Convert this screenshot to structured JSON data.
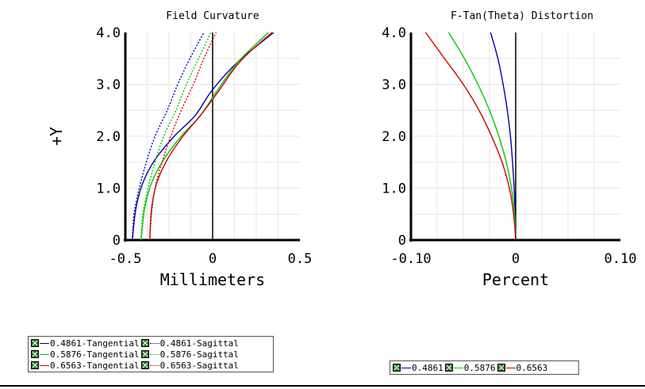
{
  "chart_data": [
    {
      "type": "line",
      "title": "Field Curvature",
      "xlabel": "Millimeters",
      "ylabel": "+Y",
      "xlim": [
        -0.5,
        0.5
      ],
      "ylim": [
        0,
        4.0
      ],
      "x_ticks": [
        "-0.5",
        "0",
        "0.5"
      ],
      "y_ticks": [
        "0",
        "1.0",
        "2.0",
        "3.0",
        "4.0"
      ],
      "grid": true,
      "series": [
        {
          "name": "0.4861-Tangential",
          "color": "#0000aa",
          "style": "solid",
          "points": [
            [
              -0.46,
              0
            ],
            [
              -0.44,
              0.6
            ],
            [
              -0.4,
              1.1
            ],
            [
              -0.33,
              1.55
            ],
            [
              -0.22,
              2.0
            ],
            [
              -0.1,
              2.4
            ],
            [
              0.0,
              2.9
            ],
            [
              0.15,
              3.45
            ],
            [
              0.35,
              4.0
            ]
          ]
        },
        {
          "name": "0.5876-Tangential",
          "color": "#00cc00",
          "style": "solid",
          "points": [
            [
              -0.41,
              0
            ],
            [
              -0.39,
              0.6
            ],
            [
              -0.35,
              1.1
            ],
            [
              -0.28,
              1.55
            ],
            [
              -0.18,
              2.0
            ],
            [
              -0.07,
              2.4
            ],
            [
              0.02,
              2.85
            ],
            [
              0.15,
              3.45
            ],
            [
              0.32,
              4.0
            ]
          ]
        },
        {
          "name": "0.6563-Tangential",
          "color": "#cc0000",
          "style": "solid",
          "points": [
            [
              -0.36,
              0
            ],
            [
              -0.35,
              0.6
            ],
            [
              -0.32,
              1.1
            ],
            [
              -0.26,
              1.55
            ],
            [
              -0.17,
              2.0
            ],
            [
              -0.07,
              2.4
            ],
            [
              0.03,
              2.85
            ],
            [
              0.16,
              3.45
            ],
            [
              0.34,
              4.0
            ]
          ]
        },
        {
          "name": "0.4861-Sagittal",
          "color": "#0000aa",
          "style": "dotted",
          "points": [
            [
              -0.46,
              0
            ],
            [
              -0.45,
              0.5
            ],
            [
              -0.42,
              1.0
            ],
            [
              -0.38,
              1.5
            ],
            [
              -0.33,
              2.0
            ],
            [
              -0.26,
              2.5
            ],
            [
              -0.2,
              3.0
            ],
            [
              -0.13,
              3.5
            ],
            [
              -0.05,
              4.0
            ]
          ]
        },
        {
          "name": "0.5876-Sagittal",
          "color": "#00cc00",
          "style": "dotted",
          "points": [
            [
              -0.41,
              0
            ],
            [
              -0.4,
              0.5
            ],
            [
              -0.37,
              1.0
            ],
            [
              -0.33,
              1.5
            ],
            [
              -0.28,
              2.0
            ],
            [
              -0.21,
              2.5
            ],
            [
              -0.15,
              3.0
            ],
            [
              -0.08,
              3.5
            ],
            [
              -0.01,
              4.0
            ]
          ]
        },
        {
          "name": "0.6563-Sagittal",
          "color": "#cc0000",
          "style": "dotted",
          "points": [
            [
              -0.36,
              0
            ],
            [
              -0.35,
              0.5
            ],
            [
              -0.33,
              1.0
            ],
            [
              -0.29,
              1.5
            ],
            [
              -0.24,
              2.0
            ],
            [
              -0.18,
              2.5
            ],
            [
              -0.11,
              3.0
            ],
            [
              -0.05,
              3.5
            ],
            [
              0.02,
              4.0
            ]
          ]
        }
      ]
    },
    {
      "type": "line",
      "title": "F-Tan(Theta) Distortion",
      "xlabel": "Percent",
      "ylabel": "",
      "xlim": [
        -0.1,
        0.1
      ],
      "ylim": [
        0,
        4.0
      ],
      "x_ticks": [
        "-0.10",
        "0",
        "0.10"
      ],
      "y_ticks": [
        "0",
        "1.0",
        "2.0",
        "3.0",
        "4.0"
      ],
      "grid": true,
      "series": [
        {
          "name": "0.4861",
          "color": "#0000aa",
          "style": "solid",
          "points": [
            [
              0,
              0
            ],
            [
              -0.0005,
              0.5
            ],
            [
              -0.0015,
              1.0
            ],
            [
              -0.003,
              1.5
            ],
            [
              -0.005,
              2.0
            ],
            [
              -0.008,
              2.5
            ],
            [
              -0.012,
              3.0
            ],
            [
              -0.017,
              3.5
            ],
            [
              -0.024,
              4.0
            ]
          ]
        },
        {
          "name": "0.5876",
          "color": "#00cc00",
          "style": "solid",
          "points": [
            [
              0,
              0
            ],
            [
              -0.001,
              0.5
            ],
            [
              -0.004,
              1.0
            ],
            [
              -0.009,
              1.5
            ],
            [
              -0.016,
              2.0
            ],
            [
              -0.025,
              2.5
            ],
            [
              -0.036,
              3.0
            ],
            [
              -0.049,
              3.5
            ],
            [
              -0.064,
              4.0
            ]
          ]
        },
        {
          "name": "0.6563",
          "color": "#cc0000",
          "style": "solid",
          "points": [
            [
              0,
              0
            ],
            [
              -0.002,
              0.5
            ],
            [
              -0.006,
              1.0
            ],
            [
              -0.013,
              1.5
            ],
            [
              -0.023,
              2.0
            ],
            [
              -0.035,
              2.5
            ],
            [
              -0.05,
              3.0
            ],
            [
              -0.068,
              3.5
            ],
            [
              -0.086,
              4.0
            ]
          ]
        }
      ]
    }
  ],
  "legends": {
    "field_curvature": {
      "rows": [
        [
          {
            "label": "0.4861-Tangential",
            "color": "#0000aa",
            "style": "solid"
          },
          {
            "label": "0.4861-Sagittal",
            "color": "#0000aa",
            "style": "dotted"
          }
        ],
        [
          {
            "label": "0.5876-Tangential",
            "color": "#00cc00",
            "style": "solid"
          },
          {
            "label": "0.5876-Sagittal",
            "color": "#00cc00",
            "style": "dotted"
          }
        ],
        [
          {
            "label": "0.6563-Tangential",
            "color": "#cc0000",
            "style": "solid"
          },
          {
            "label": "0.6563-Sagittal",
            "color": "#cc0000",
            "style": "dotted"
          }
        ]
      ]
    },
    "distortion": {
      "rows": [
        [
          {
            "label": "0.4861",
            "color": "#0000aa",
            "style": "solid"
          },
          {
            "label": "0.5876",
            "color": "#00cc00",
            "style": "solid"
          },
          {
            "label": "0.6563",
            "color": "#cc0000",
            "style": "solid"
          }
        ]
      ]
    }
  },
  "checkbox_icon": "checked-box-icon"
}
